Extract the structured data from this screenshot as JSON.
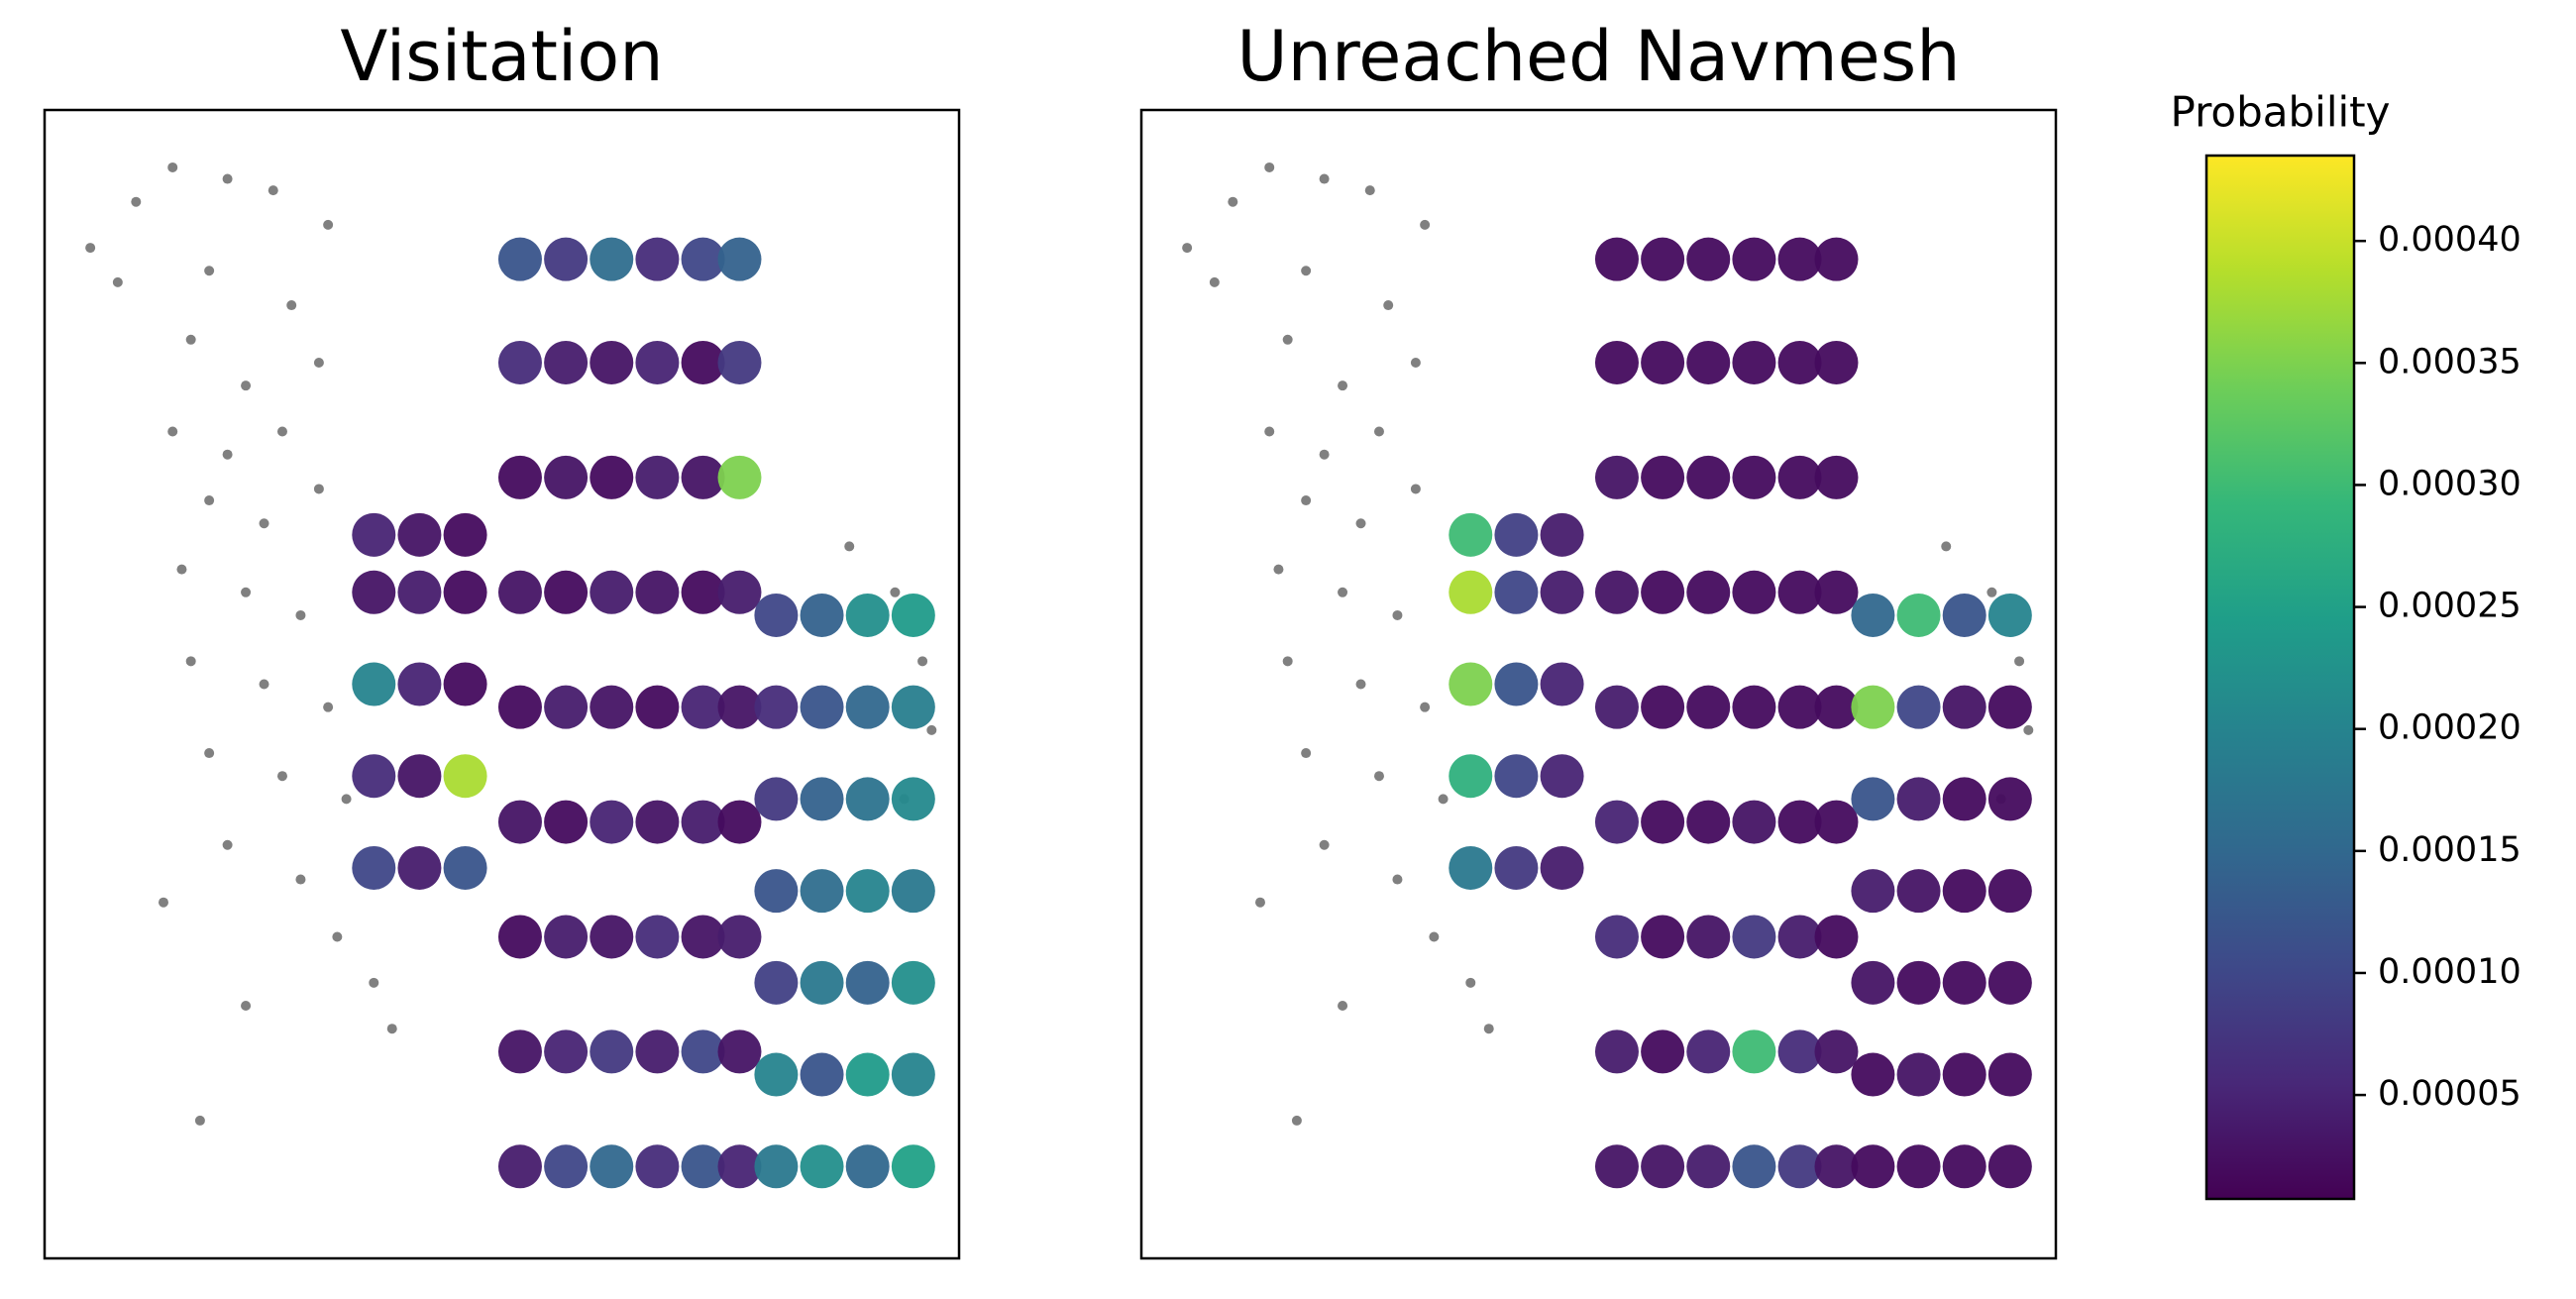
{
  "chart_data": [
    {
      "type": "scatter",
      "title": "Visitation",
      "xlim": [
        0,
        100
      ],
      "ylim": [
        0,
        100
      ],
      "series": [
        {
          "color": "#808080",
          "x": [
            5,
            10,
            14,
            20,
            25,
            31,
            8,
            18,
            27,
            16,
            22,
            30,
            14,
            20,
            26,
            18,
            24,
            30,
            15,
            22,
            28,
            16,
            24,
            31,
            18,
            26,
            33,
            20,
            28,
            32,
            36,
            38,
            13,
            22,
            17,
            88,
            93,
            96,
            97,
            94
          ],
          "y": [
            88,
            92,
            95,
            94,
            93,
            90,
            85,
            86,
            83,
            80,
            76,
            78,
            72,
            70,
            72,
            66,
            64,
            67,
            60,
            58,
            56,
            52,
            50,
            48,
            44,
            42,
            40,
            36,
            33,
            28,
            24,
            20,
            31,
            22,
            12,
            62,
            58,
            52,
            46,
            40
          ]
        },
        {
          "colormap": "viridis",
          "x": [
            52,
            57,
            62,
            67,
            72,
            76,
            52,
            57,
            62,
            67,
            72,
            76,
            52,
            57,
            62,
            67,
            72,
            76,
            52,
            57,
            62,
            67,
            72,
            76,
            52,
            57,
            62,
            67,
            72,
            76,
            52,
            57,
            62,
            67,
            72,
            76,
            52,
            57,
            62,
            67,
            72,
            76,
            52,
            57,
            62,
            67,
            72,
            76,
            52,
            57,
            62,
            67,
            72,
            76,
            36,
            41,
            46,
            36,
            41,
            46,
            36,
            41,
            46,
            36,
            41,
            46,
            36,
            41,
            46,
            80,
            85,
            90,
            95,
            80,
            85,
            90,
            95,
            80,
            85,
            90,
            95,
            80,
            85,
            90,
            95,
            80,
            85,
            90,
            95,
            80,
            85,
            90,
            95,
            80,
            85,
            90,
            95
          ],
          "y": [
            8,
            8,
            8,
            8,
            8,
            8,
            18,
            18,
            18,
            18,
            18,
            18,
            28,
            28,
            28,
            28,
            28,
            28,
            38,
            38,
            38,
            38,
            38,
            38,
            48,
            48,
            48,
            48,
            48,
            48,
            58,
            58,
            58,
            58,
            58,
            58,
            68,
            68,
            68,
            68,
            68,
            68,
            78,
            78,
            78,
            78,
            78,
            78,
            87,
            87,
            87,
            87,
            87,
            87,
            34,
            34,
            34,
            42,
            42,
            42,
            50,
            50,
            50,
            58,
            58,
            58,
            63,
            63,
            63,
            8,
            8,
            8,
            8,
            16,
            16,
            16,
            16,
            24,
            24,
            24,
            24,
            32,
            32,
            32,
            32,
            40,
            40,
            40,
            40,
            48,
            48,
            48,
            48,
            56,
            56,
            56,
            56
          ],
          "values": [
            4e-05,
            0.0001,
            0.00015,
            6e-05,
            0.00012,
            5e-05,
            3e-05,
            5e-05,
            8e-05,
            4e-05,
            0.0001,
            3e-05,
            2e-05,
            4e-05,
            3e-05,
            6e-05,
            3e-05,
            4e-05,
            3e-05,
            2e-05,
            5e-05,
            3e-05,
            4e-05,
            2e-05,
            2e-05,
            4e-05,
            3e-05,
            2e-05,
            5e-05,
            3e-05,
            3e-05,
            2e-05,
            4e-05,
            3e-05,
            2e-05,
            4e-05,
            2e-05,
            3e-05,
            2e-05,
            4e-05,
            3e-05,
            0.00035,
            6e-05,
            4e-05,
            3e-05,
            5e-05,
            2e-05,
            8e-05,
            0.00012,
            8e-05,
            0.00016,
            6e-05,
            0.0001,
            0.00014,
            0.0001,
            4e-05,
            0.00012,
            6e-05,
            3e-05,
            0.00038,
            0.0002,
            5e-05,
            2e-05,
            3e-05,
            4e-05,
            2e-05,
            5e-05,
            3e-05,
            2e-05,
            0.00018,
            0.00022,
            0.00015,
            0.00025,
            0.0002,
            0.00012,
            0.00024,
            0.0002,
            9e-05,
            0.00018,
            0.00014,
            0.00022,
            0.00012,
            0.00016,
            0.0002,
            0.00018,
            8e-05,
            0.00014,
            0.00017,
            0.00021,
            6e-05,
            0.00012,
            0.00015,
            0.00019,
            0.0001,
            0.00014,
            0.00022,
            0.00024
          ]
        }
      ]
    },
    {
      "type": "scatter",
      "title": "Unreached Navmesh",
      "xlim": [
        0,
        100
      ],
      "ylim": [
        0,
        100
      ],
      "series": [
        {
          "color": "#808080",
          "x": [
            5,
            10,
            14,
            20,
            25,
            31,
            8,
            18,
            27,
            16,
            22,
            30,
            14,
            20,
            26,
            18,
            24,
            30,
            15,
            22,
            28,
            16,
            24,
            31,
            18,
            26,
            33,
            20,
            28,
            32,
            36,
            38,
            13,
            22,
            17,
            88,
            93,
            96,
            97,
            94
          ],
          "y": [
            88,
            92,
            95,
            94,
            93,
            90,
            85,
            86,
            83,
            80,
            76,
            78,
            72,
            70,
            72,
            66,
            64,
            67,
            60,
            58,
            56,
            52,
            50,
            48,
            44,
            42,
            40,
            36,
            33,
            28,
            24,
            20,
            31,
            22,
            12,
            62,
            58,
            52,
            46,
            40
          ]
        },
        {
          "colormap": "viridis",
          "x": [
            52,
            57,
            62,
            67,
            72,
            76,
            52,
            57,
            62,
            67,
            72,
            76,
            52,
            57,
            62,
            67,
            72,
            76,
            52,
            57,
            62,
            67,
            72,
            76,
            52,
            57,
            62,
            67,
            72,
            76,
            52,
            57,
            62,
            67,
            72,
            76,
            52,
            57,
            62,
            67,
            72,
            76,
            52,
            57,
            62,
            67,
            72,
            76,
            52,
            57,
            62,
            67,
            72,
            76,
            36,
            41,
            46,
            36,
            41,
            46,
            36,
            41,
            46,
            36,
            41,
            46,
            36,
            41,
            46,
            80,
            85,
            90,
            95,
            80,
            85,
            90,
            95,
            80,
            85,
            90,
            95,
            80,
            85,
            90,
            95,
            80,
            85,
            90,
            95,
            80,
            85,
            90,
            95,
            80,
            85,
            90,
            95
          ],
          "y": [
            8,
            8,
            8,
            8,
            8,
            8,
            18,
            18,
            18,
            18,
            18,
            18,
            28,
            28,
            28,
            28,
            28,
            28,
            38,
            38,
            38,
            38,
            38,
            38,
            48,
            48,
            48,
            48,
            48,
            48,
            58,
            58,
            58,
            58,
            58,
            58,
            68,
            68,
            68,
            68,
            68,
            68,
            78,
            78,
            78,
            78,
            78,
            78,
            87,
            87,
            87,
            87,
            87,
            87,
            34,
            34,
            34,
            42,
            42,
            42,
            50,
            50,
            50,
            58,
            58,
            58,
            63,
            63,
            63,
            8,
            8,
            8,
            8,
            16,
            16,
            16,
            16,
            24,
            24,
            24,
            24,
            32,
            32,
            32,
            32,
            40,
            40,
            40,
            40,
            48,
            48,
            48,
            48,
            56,
            56,
            56,
            56
          ],
          "values": [
            3e-05,
            3e-05,
            4e-05,
            0.00012,
            8e-05,
            3e-05,
            4e-05,
            2e-05,
            5e-05,
            0.0003,
            6e-05,
            3e-05,
            6e-05,
            2e-05,
            3e-05,
            8e-05,
            4e-05,
            2e-05,
            5e-05,
            2e-05,
            2e-05,
            3e-05,
            2e-05,
            2e-05,
            4e-05,
            2e-05,
            2e-05,
            2e-05,
            2e-05,
            2e-05,
            3e-05,
            2e-05,
            2e-05,
            2e-05,
            2e-05,
            2e-05,
            3e-05,
            2e-05,
            2e-05,
            2e-05,
            2e-05,
            2e-05,
            2e-05,
            2e-05,
            2e-05,
            2e-05,
            2e-05,
            2e-05,
            2e-05,
            2e-05,
            2e-05,
            2e-05,
            2e-05,
            2e-05,
            0.00018,
            8e-05,
            4e-05,
            0.00028,
            0.0001,
            5e-05,
            0.00035,
            0.00012,
            5e-05,
            0.00038,
            0.0001,
            4e-05,
            0.0003,
            9e-05,
            4e-05,
            2e-05,
            2e-05,
            2e-05,
            2e-05,
            2e-05,
            3e-05,
            2e-05,
            2e-05,
            3e-05,
            2e-05,
            2e-05,
            2e-05,
            4e-05,
            3e-05,
            2e-05,
            2e-05,
            0.00012,
            4e-05,
            2e-05,
            2e-05,
            0.00035,
            0.0001,
            3e-05,
            2e-05,
            0.00015,
            0.0003,
            0.00012,
            0.0002
          ]
        }
      ]
    },
    {
      "type": "colorbar",
      "title": "Probability",
      "colormap": "viridis",
      "ylim": [
        7.4e-06,
        0.000435
      ],
      "yticks": [
        5e-05,
        {
          "value": 0.0001,
          "label": "0.00010"
        },
        0.00015,
        {
          "value": 0.0002,
          "label": "0.00020"
        },
        0.00025,
        {
          "value": 0.0003,
          "label": "0.00030"
        },
        0.00035,
        {
          "value": 0.0004,
          "label": "0.00040"
        }
      ]
    }
  ]
}
